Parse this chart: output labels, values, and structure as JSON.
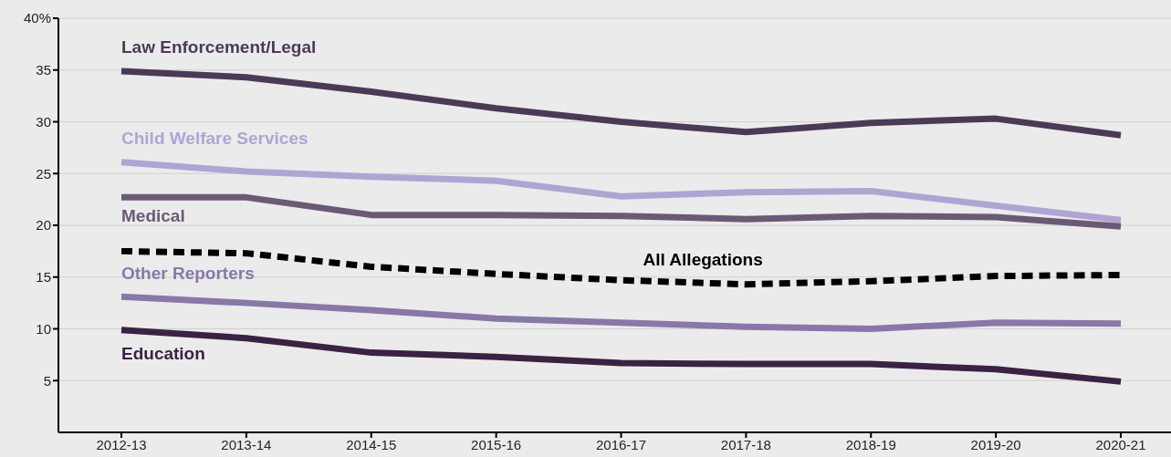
{
  "chart_data": {
    "type": "line",
    "categories": [
      "2012-13",
      "2013-14",
      "2014-15",
      "2015-16",
      "2016-17",
      "2017-18",
      "2018-19",
      "2019-20",
      "2020-21"
    ],
    "ylim": [
      0,
      40
    ],
    "yticks": [
      5,
      10,
      15,
      20,
      25,
      30,
      35,
      {
        "value": 40,
        "label": "40%"
      }
    ],
    "grid": "y",
    "legend": false,
    "marker": "none",
    "series": [
      {
        "name": "Law Enforcement/Legal",
        "color": "#4b3a56",
        "values": [
          34.9,
          34.3,
          32.9,
          31.3,
          30.0,
          29.0,
          29.9,
          30.3,
          28.7
        ]
      },
      {
        "name": "Child Welfare Services",
        "color": "#b0a4d4",
        "values": [
          26.1,
          25.2,
          24.7,
          24.3,
          22.8,
          23.2,
          23.3,
          21.9,
          20.5
        ]
      },
      {
        "name": "Medical",
        "color": "#6a5a74",
        "values": [
          22.7,
          22.7,
          21.0,
          21.0,
          20.9,
          20.6,
          20.9,
          20.8,
          19.9
        ]
      },
      {
        "name": "All Allegations",
        "color": "#000000",
        "line_style": "dashed",
        "values": [
          17.5,
          17.3,
          16.0,
          15.3,
          14.7,
          14.3,
          14.6,
          15.1,
          15.2
        ]
      },
      {
        "name": "Other Reporters",
        "color": "#8878a8",
        "values": [
          13.1,
          12.5,
          11.8,
          11.0,
          10.6,
          10.2,
          10.0,
          10.6,
          10.5
        ]
      },
      {
        "name": "Education",
        "color": "#3a2244",
        "values": [
          9.9,
          9.1,
          7.7,
          7.3,
          6.7,
          6.6,
          6.6,
          6.1,
          4.9
        ]
      }
    ]
  }
}
